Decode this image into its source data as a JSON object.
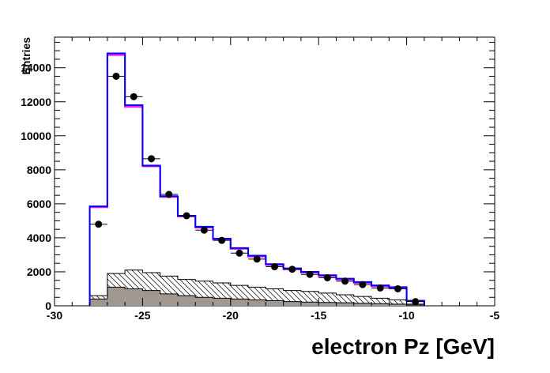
{
  "chart_data": {
    "type": "histogram",
    "xlabel": "electron Pz [GeV]",
    "ylabel": "Entries",
    "xlim": [
      -30,
      -5
    ],
    "ylim": [
      0,
      15800
    ],
    "x_ticks": [
      -30,
      -25,
      -20,
      -15,
      -10,
      -5
    ],
    "x_tick_labels": [
      "-30",
      "-25",
      "-20",
      "-15",
      "-10",
      "-5"
    ],
    "y_ticks": [
      0,
      2000,
      4000,
      6000,
      8000,
      10000,
      12000,
      14000
    ],
    "y_tick_labels": [
      "0",
      "2000",
      "4000",
      "6000",
      "8000",
      "10000",
      "12000",
      "14000"
    ],
    "bin_edges": [
      -28,
      -27,
      -26,
      -25,
      -24,
      -23,
      -22,
      -21,
      -20,
      -19,
      -18,
      -17,
      -16,
      -15,
      -14,
      -13,
      -12,
      -11,
      -10,
      -9
    ],
    "mc_total_blue": [
      5850,
      14850,
      11800,
      8250,
      6450,
      5300,
      4650,
      3950,
      3400,
      2950,
      2450,
      2200,
      2000,
      1800,
      1600,
      1400,
      1200,
      1100,
      300
    ],
    "mc_total_magenta": [
      5800,
      14750,
      11700,
      8200,
      6400,
      5250,
      4600,
      3900,
      3350,
      2900,
      2400,
      2150,
      1950,
      1750,
      1550,
      1350,
      1150,
      1050,
      280
    ],
    "background_hatched": [
      600,
      1900,
      2100,
      1950,
      1750,
      1550,
      1450,
      1350,
      1200,
      1100,
      1000,
      900,
      850,
      750,
      650,
      550,
      450,
      350,
      100
    ],
    "background_filled": [
      400,
      1100,
      1000,
      900,
      700,
      600,
      500,
      450,
      400,
      350,
      300,
      250,
      220,
      200,
      180,
      150,
      130,
      100,
      40
    ],
    "data_points": [
      4800,
      13500,
      12300,
      8650,
      6550,
      5300,
      4450,
      3850,
      3100,
      2750,
      2300,
      2150,
      1850,
      1650,
      1450,
      1250,
      1050,
      1000,
      250
    ],
    "colors": {
      "mc_total_blue": "#0000ff",
      "mc_total_magenta": "#ff00ff",
      "background_filled": "#a09890",
      "data_points": "#000000"
    }
  }
}
